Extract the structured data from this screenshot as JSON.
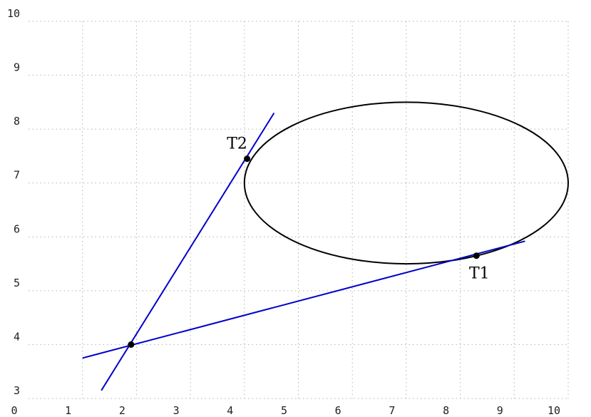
{
  "chart_data": {
    "type": "line",
    "xlim": [
      0,
      10
    ],
    "ylim": [
      3,
      10
    ],
    "x_ticks": [
      "0",
      "1",
      "2",
      "3",
      "4",
      "5",
      "6",
      "7",
      "8",
      "9",
      "10"
    ],
    "y_ticks": [
      "3",
      "4",
      "5",
      "6",
      "7",
      "8",
      "9",
      "10"
    ],
    "grid": true,
    "grid_style": "dotted",
    "ellipse": {
      "center": [
        7,
        7
      ],
      "rx": 3,
      "ry": 1.5
    },
    "external_point": {
      "x": 1.9,
      "y": 4.0
    },
    "tangent_points": [
      {
        "label": "T1",
        "x": 8.3,
        "y": 5.65
      },
      {
        "label": "T2",
        "x": 4.05,
        "y": 7.45
      }
    ],
    "tangent_lines": [
      {
        "from": [
          1.0,
          3.75
        ],
        "to": [
          9.2,
          5.92
        ]
      },
      {
        "from": [
          1.35,
          3.15
        ],
        "to": [
          4.55,
          8.3
        ]
      }
    ],
    "colors": {
      "ellipse": "#000000",
      "tangent": "#0000cc",
      "grid": "#b0b0b0",
      "point": "#000000"
    }
  }
}
